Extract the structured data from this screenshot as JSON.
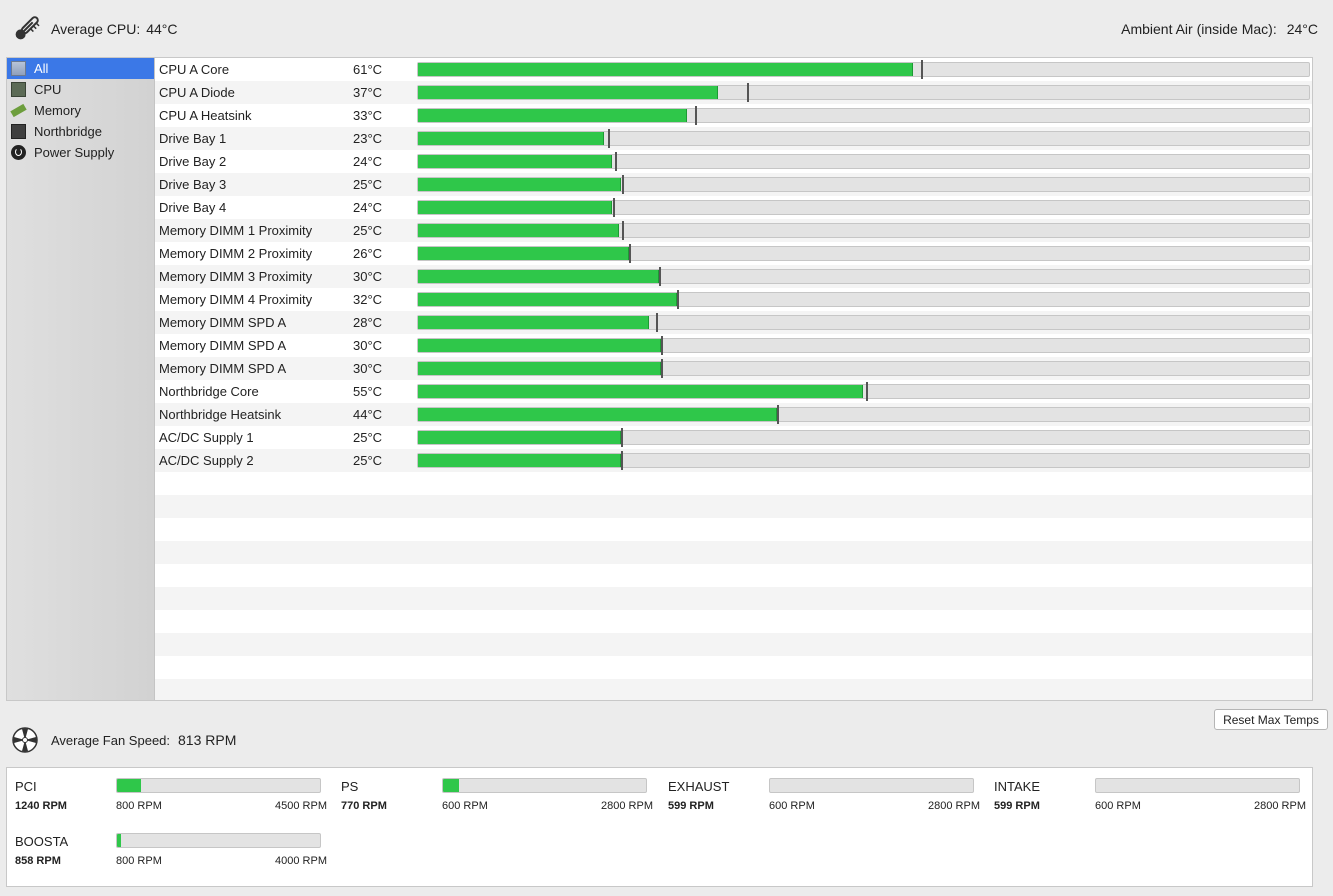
{
  "header": {
    "avg_cpu_label": "Average CPU:",
    "avg_cpu_value": "44°C",
    "ambient_label": "Ambient Air (inside Mac):",
    "ambient_value": "24°C"
  },
  "sidebar": {
    "items": [
      {
        "label": "All",
        "icon": "all-sensors-icon",
        "selected": true
      },
      {
        "label": "CPU",
        "icon": "cpu-chip-icon",
        "selected": false
      },
      {
        "label": "Memory",
        "icon": "memory-stick-icon",
        "selected": false
      },
      {
        "label": "Northbridge",
        "icon": "northbridge-chip-icon",
        "selected": false
      },
      {
        "label": "Power Supply",
        "icon": "power-icon",
        "selected": false
      }
    ]
  },
  "sensors": [
    {
      "name": "CPU A Core",
      "temp": "61°C",
      "fill": 0.555,
      "max": 0.565
    },
    {
      "name": "CPU A Diode",
      "temp": "37°C",
      "fill": 0.337,
      "max": 0.369
    },
    {
      "name": "CPU A Heatsink",
      "temp": "33°C",
      "fill": 0.302,
      "max": 0.311
    },
    {
      "name": "Drive Bay 1",
      "temp": "23°C",
      "fill": 0.209,
      "max": 0.213
    },
    {
      "name": "Drive Bay 2",
      "temp": "24°C",
      "fill": 0.218,
      "max": 0.221
    },
    {
      "name": "Drive Bay 3",
      "temp": "25°C",
      "fill": 0.228,
      "max": 0.229
    },
    {
      "name": "Drive Bay 4",
      "temp": "24°C",
      "fill": 0.218,
      "max": 0.219
    },
    {
      "name": "Memory DIMM 1 Proximity",
      "temp": "25°C",
      "fill": 0.226,
      "max": 0.229
    },
    {
      "name": "Memory DIMM 2 Proximity",
      "temp": "26°C",
      "fill": 0.237,
      "max": 0.237
    },
    {
      "name": "Memory DIMM 3 Proximity",
      "temp": "30°C",
      "fill": 0.271,
      "max": 0.271
    },
    {
      "name": "Memory DIMM 4 Proximity",
      "temp": "32°C",
      "fill": 0.291,
      "max": 0.291
    },
    {
      "name": "Memory DIMM SPD A",
      "temp": "28°C",
      "fill": 0.259,
      "max": 0.267
    },
    {
      "name": "Memory DIMM SPD A",
      "temp": "30°C",
      "fill": 0.273,
      "max": 0.273
    },
    {
      "name": "Memory DIMM SPD A",
      "temp": "30°C",
      "fill": 0.273,
      "max": 0.273
    },
    {
      "name": "Northbridge Core",
      "temp": "55°C",
      "fill": 0.499,
      "max": 0.503
    },
    {
      "name": "Northbridge Heatsink",
      "temp": "44°C",
      "fill": 0.403,
      "max": 0.403
    },
    {
      "name": "AC/DC Supply 1",
      "temp": "25°C",
      "fill": 0.228,
      "max": 0.228
    },
    {
      "name": "AC/DC Supply 2",
      "temp": "25°C",
      "fill": 0.228,
      "max": 0.228
    }
  ],
  "reset_button_label": "Reset Max Temps",
  "fans_header": {
    "avg_fan_label": "Average Fan Speed:",
    "avg_fan_value": "813 RPM"
  },
  "fans": [
    {
      "name": "PCI",
      "rpm": "1240 RPM",
      "min": "800 RPM",
      "max": "4500 RPM",
      "fill": 0.119
    },
    {
      "name": "PS",
      "rpm": "770 RPM",
      "min": "600 RPM",
      "max": "2800 RPM",
      "fill": 0.077
    },
    {
      "name": "EXHAUST",
      "rpm": "599 RPM",
      "min": "600 RPM",
      "max": "2800 RPM",
      "fill": 0.0
    },
    {
      "name": "INTAKE",
      "rpm": "599 RPM",
      "min": "600 RPM",
      "max": "2800 RPM",
      "fill": 0.0
    },
    {
      "name": "BOOSTA",
      "rpm": "858 RPM",
      "min": "800 RPM",
      "max": "4000 RPM",
      "fill": 0.018
    }
  ],
  "colors": {
    "bar_green": "#2fc74a",
    "selection_blue": "#3b78e7",
    "track_gray": "#e3e3e3"
  }
}
